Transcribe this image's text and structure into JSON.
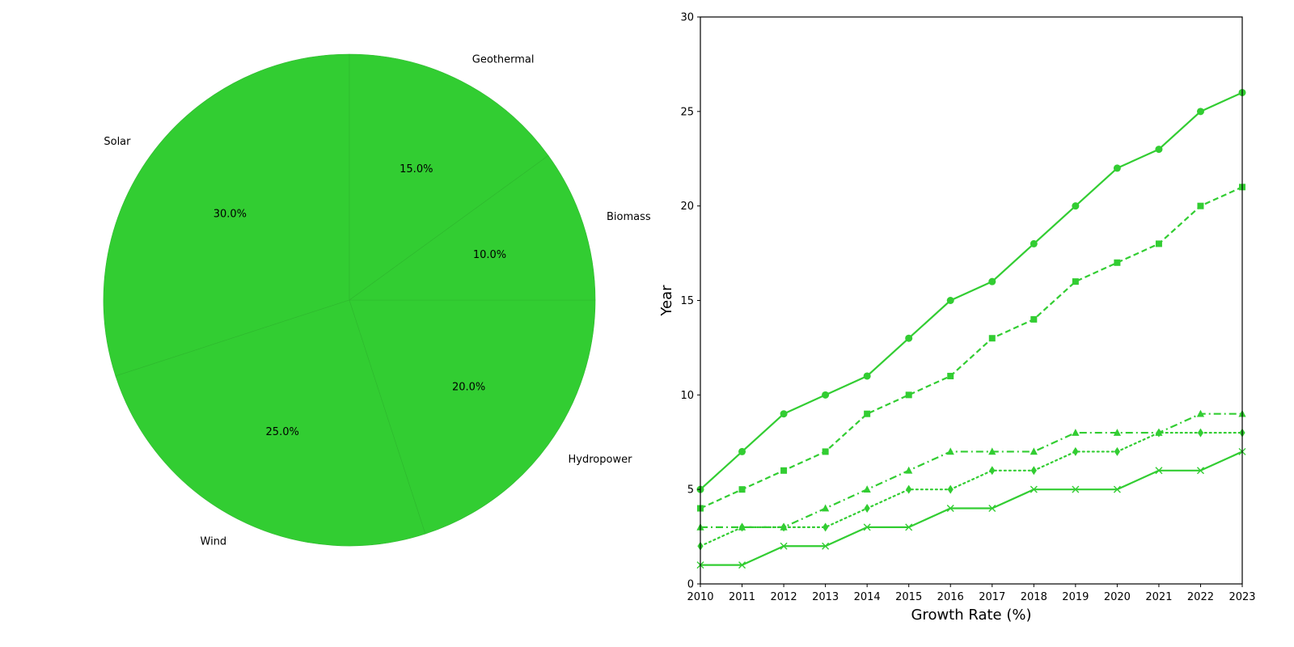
{
  "chart_data": [
    {
      "type": "pie",
      "title": "",
      "color": "#32cd32",
      "edge_color": "#2eb82e",
      "start_angle_deg": 90,
      "direction": "counterclockwise",
      "slices": [
        {
          "label": "Solar",
          "value": 30,
          "pct_label": "30.0%"
        },
        {
          "label": "Wind",
          "value": 25,
          "pct_label": "25.0%"
        },
        {
          "label": "Hydropower",
          "value": 20,
          "pct_label": "20.0%"
        },
        {
          "label": "Biomass",
          "value": 10,
          "pct_label": "10.0%"
        },
        {
          "label": "Geothermal",
          "value": 15,
          "pct_label": "15.0%"
        }
      ]
    },
    {
      "type": "line",
      "title": "",
      "xlabel": "Growth Rate (%)",
      "ylabel": "Year",
      "xlim": [
        2010,
        2023
      ],
      "ylim": [
        0,
        30
      ],
      "xticks": [
        2010,
        2011,
        2012,
        2013,
        2014,
        2015,
        2016,
        2017,
        2018,
        2019,
        2020,
        2021,
        2022,
        2023
      ],
      "yticks": [
        0,
        5,
        10,
        15,
        20,
        25,
        30
      ],
      "grid": false,
      "legend": "none",
      "color": "#32cd32",
      "x": [
        2010,
        2011,
        2012,
        2013,
        2014,
        2015,
        2016,
        2017,
        2018,
        2019,
        2020,
        2021,
        2022,
        2023
      ],
      "series": [
        {
          "marker": "circle",
          "line_style": "solid",
          "values": [
            5,
            7,
            9,
            10,
            11,
            13,
            15,
            16,
            18,
            20,
            22,
            23,
            25,
            26
          ]
        },
        {
          "marker": "square",
          "line_style": "dashed",
          "values": [
            4,
            5,
            6,
            7,
            9,
            10,
            11,
            13,
            14,
            16,
            17,
            18,
            20,
            21
          ]
        },
        {
          "marker": "triangle",
          "line_style": "dash-dot",
          "values": [
            3,
            3,
            3,
            4,
            5,
            6,
            7,
            7,
            7,
            8,
            8,
            8,
            9,
            9
          ]
        },
        {
          "marker": "diamond",
          "line_style": "dotted",
          "values": [
            2,
            3,
            3,
            3,
            4,
            5,
            5,
            6,
            6,
            7,
            7,
            8,
            8,
            8
          ]
        },
        {
          "marker": "x",
          "line_style": "solid",
          "values": [
            1,
            1,
            2,
            2,
            3,
            3,
            4,
            4,
            5,
            5,
            5,
            6,
            6,
            7
          ]
        }
      ]
    }
  ]
}
